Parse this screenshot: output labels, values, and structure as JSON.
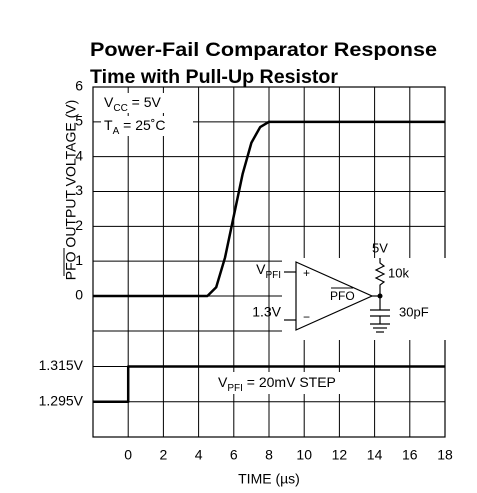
{
  "chart_data": [
    {
      "type": "line",
      "title": [
        "Power-Fail Comparator Response",
        "Time with Pull-Up Resistor"
      ],
      "ylabel": "PFO OUTPUT VOLTAGE (V)",
      "x": [
        -2,
        4.5,
        5,
        5.5,
        6,
        6.5,
        7,
        7.5,
        8,
        8.5,
        18
      ],
      "values": [
        0,
        0,
        0.25,
        1.1,
        2.3,
        3.5,
        4.4,
        4.85,
        5,
        5,
        5
      ],
      "color": "#000000",
      "xlim": [
        -2,
        18
      ],
      "ylim": [
        0,
        6
      ],
      "yticks": [
        0,
        1,
        2,
        3,
        4,
        5,
        6
      ],
      "annotations": [
        [
          "V",
          "CC",
          " = 5V"
        ],
        [
          "T",
          "A",
          " = 25˚C"
        ]
      ],
      "grid": true
    },
    {
      "type": "line",
      "xlabel": "TIME (µs)",
      "x": [
        -2,
        0,
        0,
        18
      ],
      "values": [
        1.295,
        1.295,
        1.315,
        1.315
      ],
      "color": "#000000",
      "xlim": [
        -2,
        18
      ],
      "xticks": [
        0,
        2,
        4,
        6,
        8,
        10,
        12,
        14,
        16,
        18
      ],
      "ylim": [
        1.275,
        1.355
      ],
      "yticks": [
        {
          "value": 1.295,
          "label": "1.295V"
        },
        {
          "value": 1.315,
          "label": "1.315V"
        }
      ],
      "annotations": [
        [
          "V",
          "PFI",
          " = 20mV STEP"
        ]
      ],
      "grid": true
    }
  ],
  "inset": {
    "input": [
      "V",
      "PFI"
    ],
    "reference": "1.3V",
    "plus": "+",
    "minus": "−",
    "output": "PFO",
    "supply": "5V",
    "resistor": "10k",
    "capacitor": "30pF"
  }
}
